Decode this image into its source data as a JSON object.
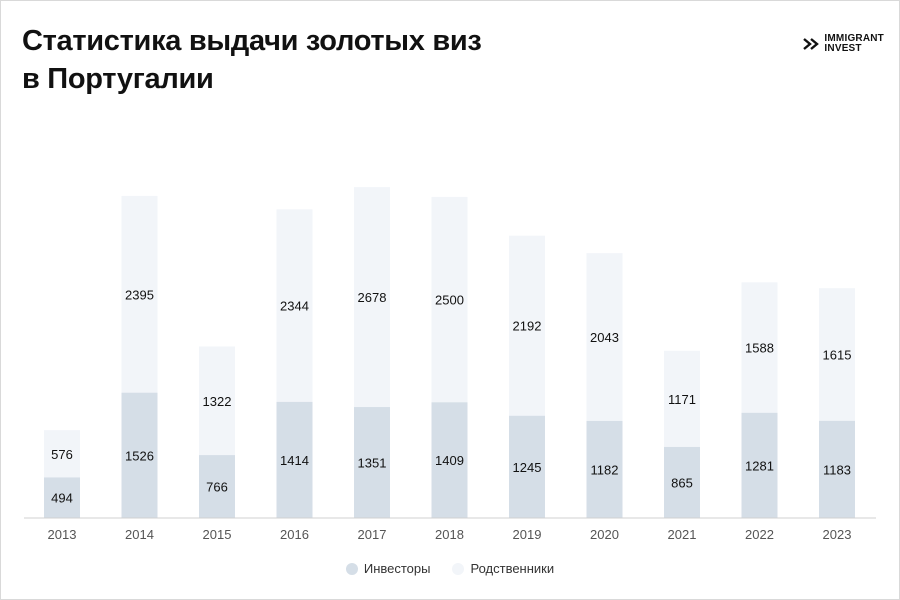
{
  "header": {
    "title_line1": "Статистика выдачи золотых виз",
    "title_line2": "в Португалии"
  },
  "logo": {
    "icon": "immigrant-invest-logo-icon",
    "line1": "IMMIGRANT",
    "line2": "INVEST"
  },
  "colors": {
    "investors": "#d5dee7",
    "relatives": "#f2f5f9",
    "axis": "#d0d0d0",
    "tick_text": "#555555",
    "value_text": "#111111"
  },
  "chart_data": {
    "type": "bar",
    "stacked": true,
    "categories": [
      "2013",
      "2014",
      "2015",
      "2016",
      "2017",
      "2018",
      "2019",
      "2020",
      "2021",
      "2022",
      "2023"
    ],
    "series": [
      {
        "name": "Инвесторы",
        "values": [
          494,
          1526,
          766,
          1414,
          1351,
          1409,
          1245,
          1182,
          865,
          1281,
          1183
        ]
      },
      {
        "name": "Родственники",
        "values": [
          576,
          2395,
          1322,
          2344,
          2678,
          2500,
          2192,
          2043,
          1171,
          1588,
          1615
        ]
      }
    ],
    "title": "Статистика выдачи золотых виз в Португалии",
    "xlabel": "",
    "ylabel": "",
    "ylim": [
      0,
      4030
    ],
    "grid": false,
    "legend": "bottom"
  }
}
